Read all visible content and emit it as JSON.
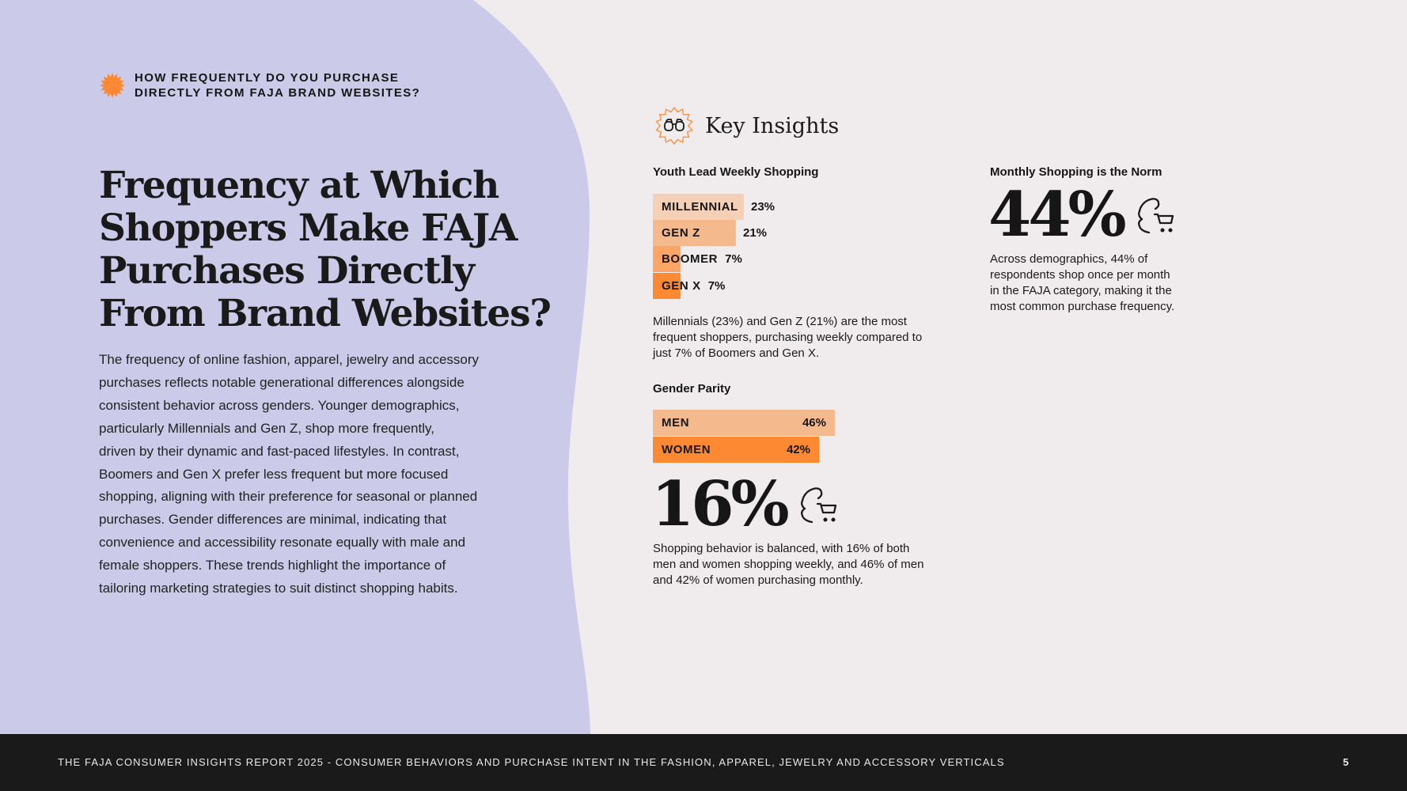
{
  "question": {
    "lines": [
      "HOW FREQUENTLY DO YOU PURCHASE",
      "DIRECTLY FROM FAJA BRAND WEBSITES?"
    ]
  },
  "title": {
    "lines": [
      "Frequency at Which",
      "Shoppers Make FAJA",
      "Purchases Directly",
      "From Brand Websites?"
    ]
  },
  "body": {
    "lines": [
      "The frequency of online fashion, apparel, jewelry and accessory",
      "purchases reflects notable generational differences alongside",
      "consistent behavior across genders. Younger demographics,",
      "particularly Millennials and Gen Z, shop more frequently,",
      "driven by their dynamic and fast-paced lifestyles. In contrast,",
      "Boomers and Gen X prefer less frequent but more focused",
      "shopping, aligning with their preference for seasonal or planned",
      "purchases. Gender differences are minimal, indicating that",
      "convenience and accessibility resonate equally with male and",
      "female shoppers. These trends highlight the importance of",
      "tailoring marketing strategies to suit distinct shopping habits."
    ]
  },
  "key_insights": {
    "title": "Key Insights",
    "icon": "binoculars-icon"
  },
  "youth": {
    "heading": "Youth Lead Weekly Shopping",
    "bars": [
      {
        "label": "MILLENNIAL",
        "value": 23,
        "display": "23%",
        "color": "#f5cfb6"
      },
      {
        "label": "GEN Z",
        "value": 21,
        "display": "21%",
        "color": "#f5b98e"
      },
      {
        "label": "BOOMER",
        "value": 7,
        "display": "7%",
        "color": "#fca566"
      },
      {
        "label": "GEN X",
        "value": 7,
        "display": "7%",
        "color": "#fd8a33"
      }
    ],
    "description": [
      "Millennials (23%) and Gen Z (21%) are the most",
      "frequent shoppers, purchasing weekly compared to",
      "just 7% of Boomers and Gen X."
    ]
  },
  "gender": {
    "heading": "Gender Parity",
    "bars": [
      {
        "label": "MEN",
        "value": 46,
        "display": "46%",
        "color": "#f5b98e"
      },
      {
        "label": "WOMEN",
        "value": 42,
        "display": "42%",
        "color": "#fd8a33"
      }
    ],
    "stat": "16%",
    "stat_icon": "shopper-cart-icon",
    "description": [
      "Shopping behavior is balanced, with 16% of both",
      "men and women shopping weekly, and 46% of men",
      "and 42% of women purchasing monthly."
    ]
  },
  "monthly": {
    "heading": "Monthly Shopping is the Norm",
    "stat": "44%",
    "stat_icon": "shopper-cart-icon",
    "description": [
      "Across demographics, 44% of",
      "respondents shop once per month",
      "in the FAJA category, making it the",
      "most common purchase frequency."
    ]
  },
  "footer": {
    "text": "THE FAJA CONSUMER INSIGHTS REPORT 2025 - CONSUMER BEHAVIORS AND PURCHASE INTENT IN THE FASHION, APPAREL, JEWELRY AND ACCESSORY VERTICALS",
    "page": "5"
  },
  "colors": {
    "background": "#f0eced",
    "lavender": "#cbcbe9",
    "accent_orange": "#fd8a33",
    "footer_bg": "#1a1a1a"
  }
}
